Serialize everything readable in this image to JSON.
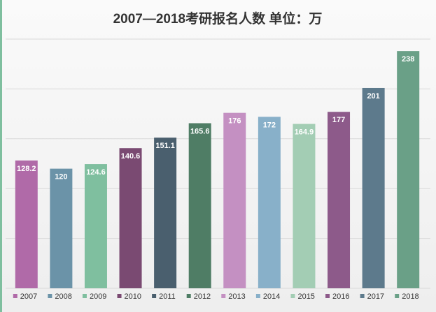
{
  "chart_data": {
    "type": "bar",
    "title": "2007—2018考研报名人数  单位：万",
    "categories": [
      "2007",
      "2008",
      "2009",
      "2010",
      "2011",
      "2012",
      "2013",
      "2014",
      "2015",
      "2016",
      "2017",
      "2018"
    ],
    "values": [
      128.2,
      120,
      124.6,
      140.6,
      151.1,
      165.6,
      176,
      172,
      164.9,
      177,
      201,
      238
    ],
    "colors": [
      "#b06aa8",
      "#6b93a8",
      "#7fbf9f",
      "#7a4a72",
      "#4a5f6e",
      "#4f7d65",
      "#c490c2",
      "#88b0c9",
      "#a3cdb4",
      "#8d5a8a",
      "#5d7a8c",
      "#6aa087"
    ],
    "ylim": [
      0,
      250
    ],
    "yticks": [
      0,
      50,
      100,
      150,
      200,
      250
    ],
    "grid": true,
    "legend": "bottom"
  }
}
